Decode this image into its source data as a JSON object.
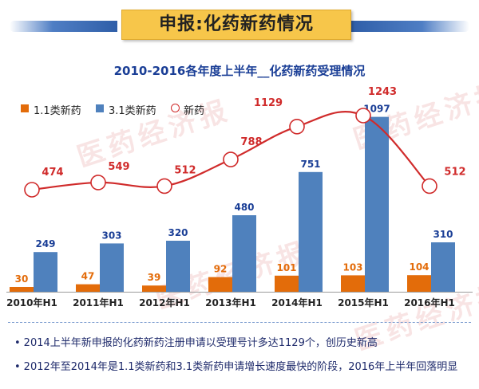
{
  "header": {
    "title": "申报:化药新药情况"
  },
  "watermark": {
    "text": "医药经济报"
  },
  "colors": {
    "bar_1_1": "#e36c0a",
    "bar_3_1": "#4f81bd",
    "line": "#d02b2b",
    "title": "#1a3e96",
    "header_bg": "#f7c64a"
  },
  "chart_data": {
    "type": "bar",
    "title": "2010-2016各年度上半年__化药新药受理情况",
    "xlabel": "",
    "ylabel": "",
    "grid": false,
    "legend_position": "top-left",
    "categories": [
      "2010年H1",
      "2011年H1",
      "2012年H1",
      "2013年H1",
      "2014年H1",
      "2015年H1",
      "2016年H1"
    ],
    "series": [
      {
        "name": "1.1类新药",
        "kind": "bar",
        "color": "#e36c0a",
        "values": [
          30,
          47,
          39,
          92,
          101,
          103,
          104
        ]
      },
      {
        "name": "3.1类新药",
        "kind": "bar",
        "color": "#4f81bd",
        "values": [
          249,
          303,
          320,
          480,
          751,
          1097,
          310
        ]
      },
      {
        "name": "新药",
        "kind": "line",
        "color": "#d02b2b",
        "values": [
          474,
          549,
          512,
          788,
          1129,
          1243,
          512
        ]
      }
    ],
    "ylim": [
      0,
      1250
    ]
  },
  "notes": [
    "2014上半年新申报的化药新药注册申请以受理号计多达1129个，创历史新高",
    "2012年至2014年是1.1类新药和3.1类新药申请增长速度最快的阶段，2016年上半年回落明显"
  ],
  "note_bullet": "•"
}
